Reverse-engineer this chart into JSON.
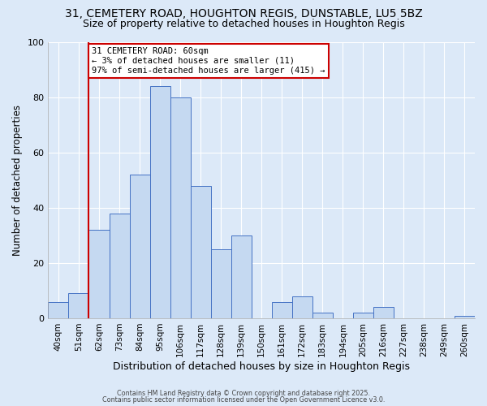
{
  "title_line1": "31, CEMETERY ROAD, HOUGHTON REGIS, DUNSTABLE, LU5 5BZ",
  "title_line2": "Size of property relative to detached houses in Houghton Regis",
  "xlabel": "Distribution of detached houses by size in Houghton Regis",
  "ylabel": "Number of detached properties",
  "bin_labels": [
    "40sqm",
    "51sqm",
    "62sqm",
    "73sqm",
    "84sqm",
    "95sqm",
    "106sqm",
    "117sqm",
    "128sqm",
    "139sqm",
    "150sqm",
    "161sqm",
    "172sqm",
    "183sqm",
    "194sqm",
    "205sqm",
    "216sqm",
    "227sqm",
    "238sqm",
    "249sqm",
    "260sqm"
  ],
  "bar_heights": [
    6,
    9,
    32,
    38,
    52,
    84,
    80,
    48,
    25,
    30,
    0,
    6,
    8,
    2,
    0,
    2,
    4,
    0,
    0,
    0,
    1
  ],
  "bar_color": "#c5d9f1",
  "bar_edge_color": "#4472c4",
  "vline_bin_index": 2,
  "vline_color": "#cc0000",
  "annotation_text": "31 CEMETERY ROAD: 60sqm\n← 3% of detached houses are smaller (11)\n97% of semi-detached houses are larger (415) →",
  "annotation_box_edgecolor": "#cc0000",
  "ylim": [
    0,
    100
  ],
  "yticks": [
    0,
    20,
    40,
    60,
    80,
    100
  ],
  "background_color": "#dce9f8",
  "plot_bg_color": "#dce9f8",
  "grid_color": "#ffffff",
  "footer_line1": "Contains HM Land Registry data © Crown copyright and database right 2025.",
  "footer_line2": "Contains public sector information licensed under the Open Government Licence v3.0.",
  "title_fontsize": 10,
  "subtitle_fontsize": 9,
  "xlabel_fontsize": 9,
  "ylabel_fontsize": 8.5
}
